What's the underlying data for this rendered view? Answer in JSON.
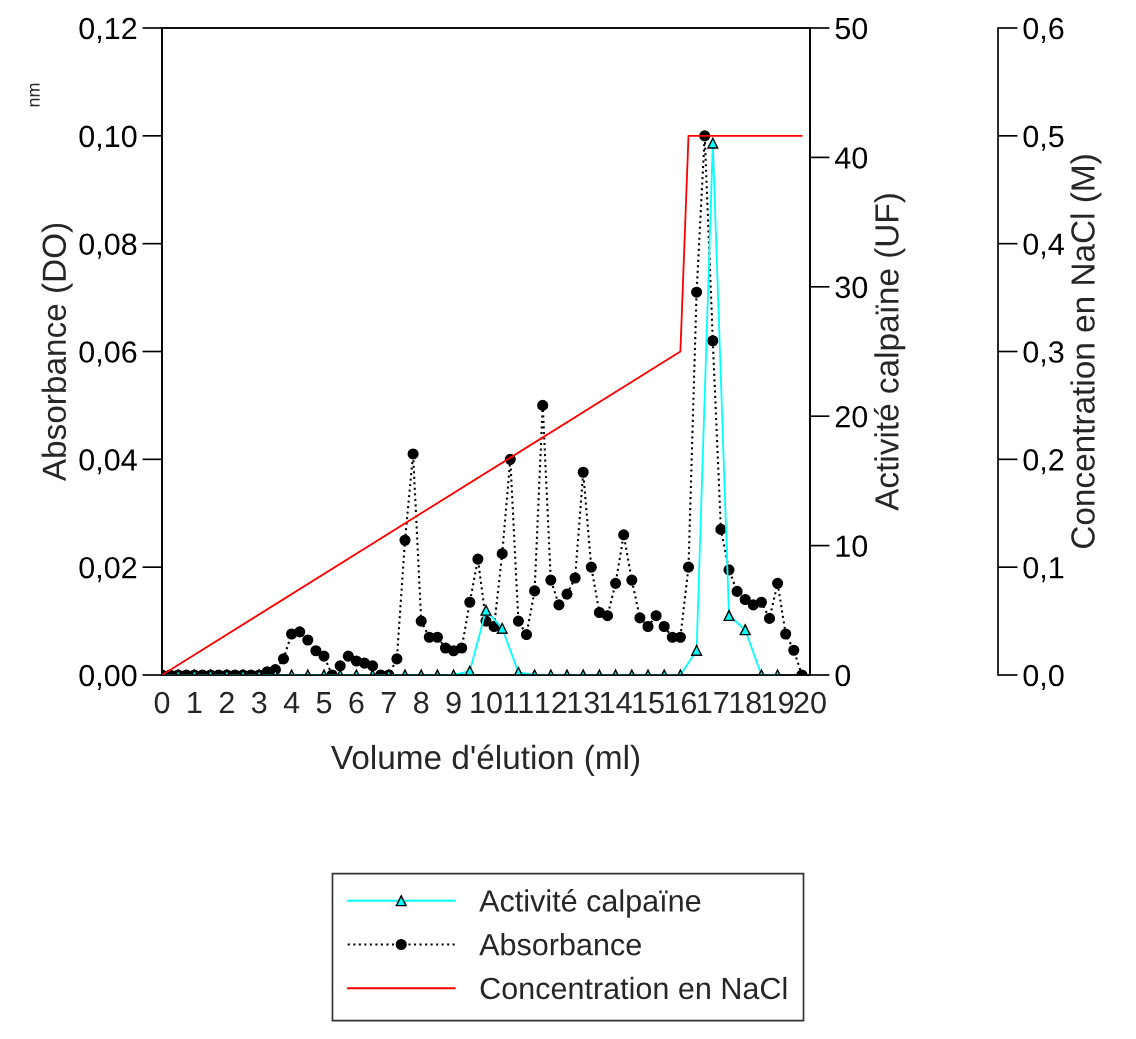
{
  "chart_data": {
    "type": "line",
    "xlabel": "Volume d'élution (ml)",
    "ylabel": "Absorbance (DO)",
    "y2label": "Activité calpaïne (UF)",
    "y3label": "Concentration en NaCl (M)",
    "annotations": [
      "nm"
    ],
    "xlim": [
      0,
      20
    ],
    "xticks": [
      0,
      1,
      2,
      3,
      4,
      5,
      6,
      7,
      8,
      9,
      10,
      11,
      12,
      13,
      14,
      15,
      16,
      17,
      18,
      19,
      20
    ],
    "ylim": [
      0,
      0.12
    ],
    "yticks": [
      {
        "value": 0,
        "label": "0,00"
      },
      {
        "value": 0.02,
        "label": "0,02"
      },
      {
        "value": 0.04,
        "label": "0,04"
      },
      {
        "value": 0.06,
        "label": "0,06"
      },
      {
        "value": 0.08,
        "label": "0,08"
      },
      {
        "value": 0.1,
        "label": "0,10"
      },
      {
        "value": 0.12,
        "label": "0,12"
      }
    ],
    "y2lim": [
      0,
      50
    ],
    "y2ticks": [
      0,
      10,
      20,
      30,
      40,
      50
    ],
    "y3lim": [
      0,
      0.6
    ],
    "y3ticks": [
      {
        "value": 0,
        "label": "0,0"
      },
      {
        "value": 0.1,
        "label": "0,1"
      },
      {
        "value": 0.2,
        "label": "0,2"
      },
      {
        "value": 0.3,
        "label": "0,3"
      },
      {
        "value": 0.4,
        "label": "0,4"
      },
      {
        "value": 0.5,
        "label": "0,5"
      },
      {
        "value": 0.6,
        "label": "0,6"
      }
    ],
    "grid": false,
    "legend": "bottom",
    "series": [
      {
        "name": "Activité calpaïne",
        "color": "#00ffff",
        "axis": "y2",
        "marker": "triangle",
        "line_style": "solid",
        "x": [
          0,
          0.5,
          1,
          1.5,
          2,
          2.5,
          3,
          3.5,
          4,
          4.5,
          5,
          5.5,
          6,
          6.5,
          7,
          7.5,
          8,
          8.5,
          9,
          9.5,
          10,
          10.5,
          11,
          11.5,
          12,
          12.5,
          13,
          13.5,
          14,
          14.5,
          15,
          15.5,
          16,
          16.5,
          17,
          17.5,
          18,
          18.5,
          19
        ],
        "values": [
          0,
          0,
          0,
          0,
          0,
          0,
          0,
          0,
          0,
          0,
          0,
          0,
          0,
          0,
          0,
          0,
          0,
          0,
          0,
          0.3,
          5.0,
          3.6,
          0.2,
          0,
          0,
          0,
          0,
          0,
          0,
          0,
          0,
          0,
          0,
          1.9,
          41.1,
          4.6,
          3.5,
          0,
          0
        ]
      },
      {
        "name": "Absorbance",
        "color": "#000000",
        "axis": "y",
        "marker": "circle",
        "line_style": "dotted",
        "x": [
          0,
          0.25,
          0.5,
          0.75,
          1,
          1.25,
          1.5,
          1.75,
          2,
          2.25,
          2.5,
          2.75,
          3,
          3.25,
          3.5,
          3.75,
          4,
          4.25,
          4.5,
          4.75,
          5,
          5.25,
          5.5,
          5.75,
          6,
          6.25,
          6.5,
          6.75,
          7,
          7.25,
          7.5,
          7.75,
          8,
          8.25,
          8.5,
          8.75,
          9,
          9.25,
          9.5,
          9.75,
          10,
          10.25,
          10.5,
          10.75,
          11,
          11.25,
          11.5,
          11.75,
          12,
          12.25,
          12.5,
          12.75,
          13,
          13.25,
          13.5,
          13.75,
          14,
          14.25,
          14.5,
          14.75,
          15,
          15.25,
          15.5,
          15.75,
          16,
          16.25,
          16.5,
          16.75,
          17,
          17.25,
          17.5,
          17.75,
          18,
          18.25,
          18.5,
          18.75,
          19,
          19.25,
          19.5,
          19.75
        ],
        "values": [
          0,
          0,
          0,
          0,
          0,
          0,
          0,
          0,
          0,
          0,
          0,
          0,
          0,
          0.0006,
          0.001,
          0.003,
          0.0076,
          0.008,
          0.0065,
          0.0045,
          0.0035,
          0,
          0.0017,
          0.0035,
          0.0026,
          0.0022,
          0.0017,
          0,
          0,
          0.003,
          0.025,
          0.041,
          0.01,
          0.007,
          0.007,
          0.005,
          0.0045,
          0.005,
          0.0135,
          0.0215,
          0.01,
          0.009,
          0.0225,
          0.04,
          0.01,
          0.0075,
          0.0156,
          0.05,
          0.0176,
          0.013,
          0.015,
          0.018,
          0.0376,
          0.02,
          0.0116,
          0.011,
          0.017,
          0.026,
          0.0176,
          0.0106,
          0.009,
          0.011,
          0.009,
          0.007,
          0.007,
          0.02,
          0.071,
          0.1,
          0.062,
          0.027,
          0.0195,
          0.0155,
          0.014,
          0.013,
          0.0135,
          0.0105,
          0.017,
          0.0076,
          0.0046,
          0
        ]
      },
      {
        "name": "Concentration en NaCl",
        "color": "#ff0000",
        "axis": "y3",
        "marker": "none",
        "line_style": "solid",
        "x": [
          0,
          16,
          16.25,
          19.75
        ],
        "values": [
          0,
          0.3,
          0.5,
          0.5
        ]
      }
    ]
  }
}
